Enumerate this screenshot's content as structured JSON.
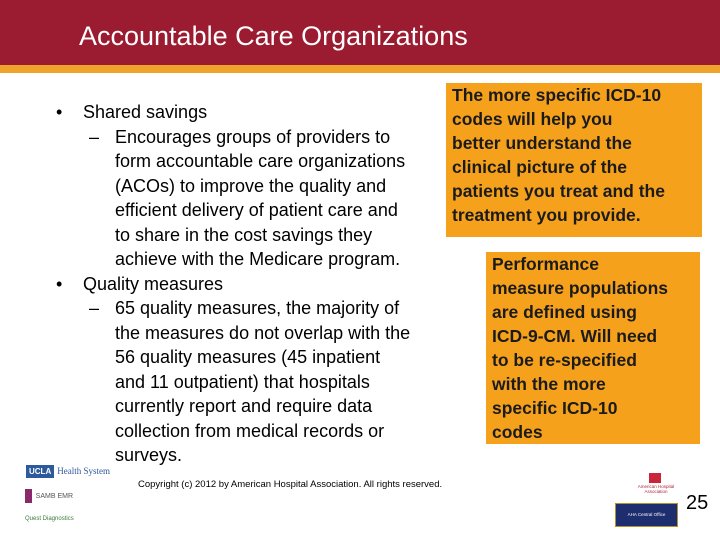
{
  "slide": {
    "title": "Accountable Care Organizations",
    "bullets": [
      {
        "label": "Shared savings",
        "sub": {
          "dash": "–",
          "lines": [
            "Encourages groups of providers to",
            "form accountable care organizations",
            "(ACOs) to improve the quality and",
            "efficient delivery of patient care and",
            "to share in the cost savings they",
            "achieve with the Medicare program."
          ]
        }
      },
      {
        "label": "Quality measures",
        "sub": {
          "dash": "–",
          "lines": [
            "65 quality measures, the majority of",
            "the measures do not overlap with the",
            "56 quality measures (45 inpatient",
            "and 11 outpatient) that hospitals",
            "currently report and require data",
            "collection from medical records or",
            "surveys."
          ]
        }
      }
    ],
    "callout_1": "The more specific ICD-10\ncodes will help you\nbetter understand the\nclinical picture of the\npatients you treat and the\ntreatment you provide.",
    "callout_2": "Performance\nmeasure populations\nare defined using\nICD-9-CM.  Will need\nto be re-specified\nwith the more\nspecific ICD-10\ncodes",
    "copyright": "Copyright (c) 2012 by  American Hospital Association. All rights reserved.",
    "page_number": "25",
    "logos": {
      "ucla_mark": "UCLA",
      "ucla_text": "Health System",
      "sem_text": "SAMB  EMR",
      "qi_text": "Quest Diagnostics",
      "aha_text": "American Hospital Association",
      "dark_text": "AHA Central Office"
    },
    "colors": {
      "title_bar": "#9b1b30",
      "accent_strip": "#f0a32a",
      "callout": "#f5a11c"
    }
  }
}
